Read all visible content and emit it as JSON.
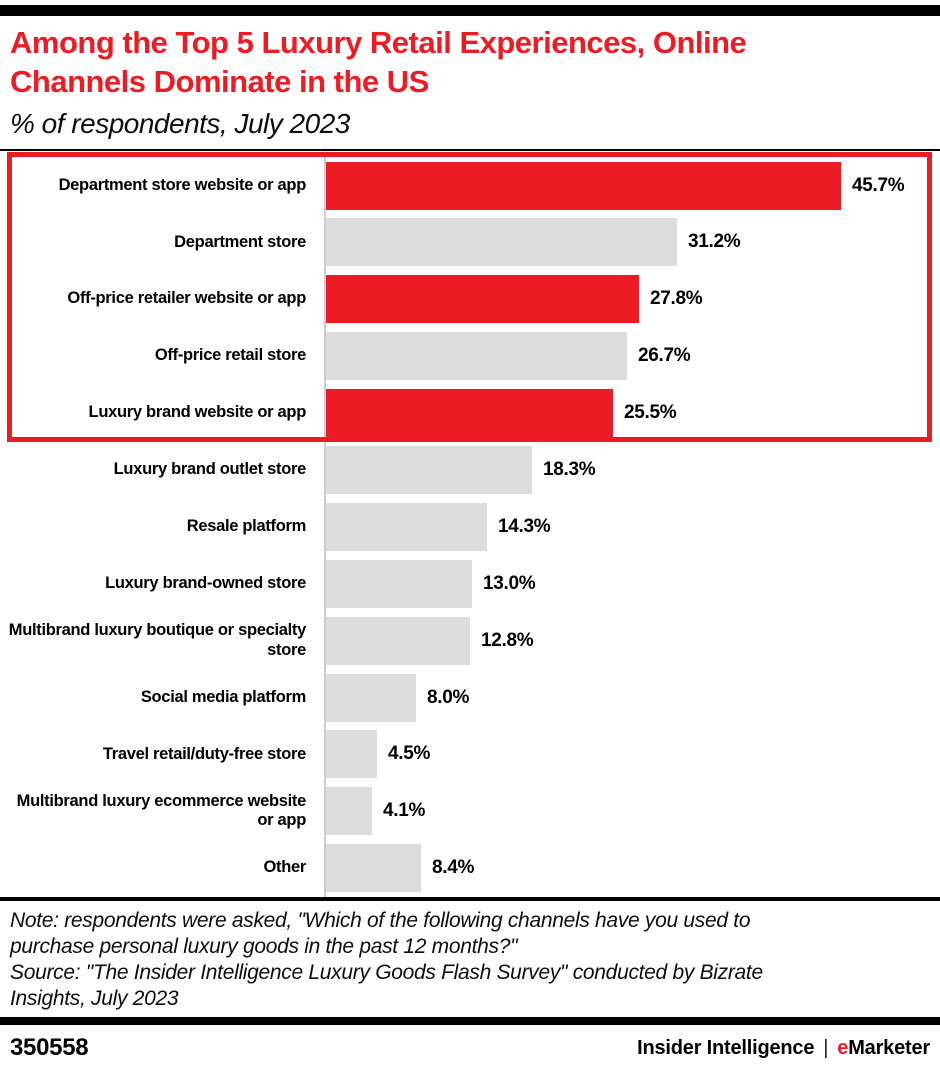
{
  "header": {
    "title_line1": "Among the Top 5 Luxury Retail Experiences, Online",
    "title_line2": "Channels Dominate in the US",
    "subtitle": "% of respondents, July 2023"
  },
  "chart_data": {
    "type": "bar",
    "orientation": "horizontal",
    "title": "Among the Top 5 Luxury Retail Experiences, Online Channels Dominate in the US",
    "subtitle": "% of respondents, July 2023",
    "xlabel": "",
    "ylabel": "",
    "xlim": [
      0,
      50
    ],
    "grid": false,
    "legend": false,
    "categories": [
      "Department store website or app",
      "Department store",
      "Off-price retailer website or app",
      "Off-price retail store",
      "Luxury brand website or app",
      "Luxury brand outlet store",
      "Resale platform",
      "Luxury brand-owned store",
      "Multibrand luxury boutique or specialty store",
      "Social media platform",
      "Travel retail/duty-free store",
      "Multibrand luxury ecommerce website or app",
      "Other"
    ],
    "values": [
      45.7,
      31.2,
      27.8,
      26.7,
      25.5,
      18.3,
      14.3,
      13.0,
      12.8,
      8.0,
      4.5,
      4.1,
      8.4
    ],
    "value_labels": [
      "45.7%",
      "31.2%",
      "27.8%",
      "26.7%",
      "25.5%",
      "18.3%",
      "14.3%",
      "13.0%",
      "12.8%",
      "8.0%",
      "4.5%",
      "4.1%",
      "8.4%"
    ],
    "highlighted_indices": [
      0,
      2,
      4
    ],
    "highlight_box_rows": [
      0,
      1,
      2,
      3,
      4
    ],
    "colors": {
      "highlight": "#ED1C24",
      "default": "#DCDCDC",
      "box_border": "#ED1C24",
      "axis": "#CCCCCC",
      "title": "#ED1C24"
    }
  },
  "footnote": {
    "note_line1": "Note: respondents were asked, \"Which of the following channels have you used to",
    "note_line2": "purchase personal luxury goods in the past 12 months?\"",
    "source_line1": "Source: \"The Insider Intelligence Luxury Goods Flash Survey\" conducted by Bizrate",
    "source_line2": "Insights, July 2023"
  },
  "footer": {
    "chart_id": "350558",
    "brand_left": "Insider Intelligence",
    "separator": "|",
    "brand_e": "e",
    "brand_rest": "Marketer"
  }
}
